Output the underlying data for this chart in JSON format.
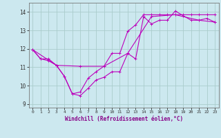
{
  "title": "",
  "xlabel": "Windchill (Refroidissement éolien,°C)",
  "ylabel": "",
  "xlim": [
    -0.5,
    23.5
  ],
  "ylim": [
    8.8,
    14.5
  ],
  "yticks": [
    9,
    10,
    11,
    12,
    13,
    14
  ],
  "xticks": [
    0,
    1,
    2,
    3,
    4,
    5,
    6,
    7,
    8,
    9,
    10,
    11,
    12,
    13,
    14,
    15,
    16,
    17,
    18,
    19,
    20,
    21,
    22,
    23
  ],
  "bg_color": "#cce8ef",
  "grid_color": "#aacccc",
  "line_color": "#bb00bb",
  "line1_x": [
    0,
    1,
    2,
    3,
    4,
    5,
    6,
    7,
    8,
    9,
    10,
    11,
    12,
    13,
    14,
    15,
    16,
    17,
    18,
    19,
    20,
    21,
    22,
    23
  ],
  "line1_y": [
    11.95,
    11.45,
    11.45,
    11.1,
    10.5,
    9.55,
    9.45,
    9.85,
    10.3,
    10.45,
    10.75,
    10.75,
    11.75,
    11.45,
    13.75,
    13.35,
    13.55,
    13.55,
    14.05,
    13.8,
    13.55,
    13.55,
    13.65,
    13.45
  ],
  "line2_x": [
    0,
    1,
    2,
    3,
    4,
    5,
    6,
    7,
    8,
    9,
    10,
    11,
    12,
    13,
    14,
    15,
    16,
    17,
    18,
    19,
    20,
    21,
    22,
    23
  ],
  "line2_y": [
    11.95,
    11.45,
    11.35,
    11.1,
    10.5,
    9.55,
    9.65,
    10.4,
    10.75,
    11.05,
    11.75,
    11.75,
    12.95,
    13.3,
    13.85,
    13.85,
    13.85,
    13.85,
    13.85,
    13.85,
    13.85,
    13.85,
    13.85,
    13.85
  ],
  "line3_x": [
    0,
    3,
    6,
    9,
    12,
    15,
    18,
    21,
    23
  ],
  "line3_y": [
    11.95,
    11.1,
    11.05,
    11.05,
    11.75,
    13.75,
    13.85,
    13.55,
    13.45
  ],
  "xlabel_color": "#880088",
  "tick_color": "#333333"
}
